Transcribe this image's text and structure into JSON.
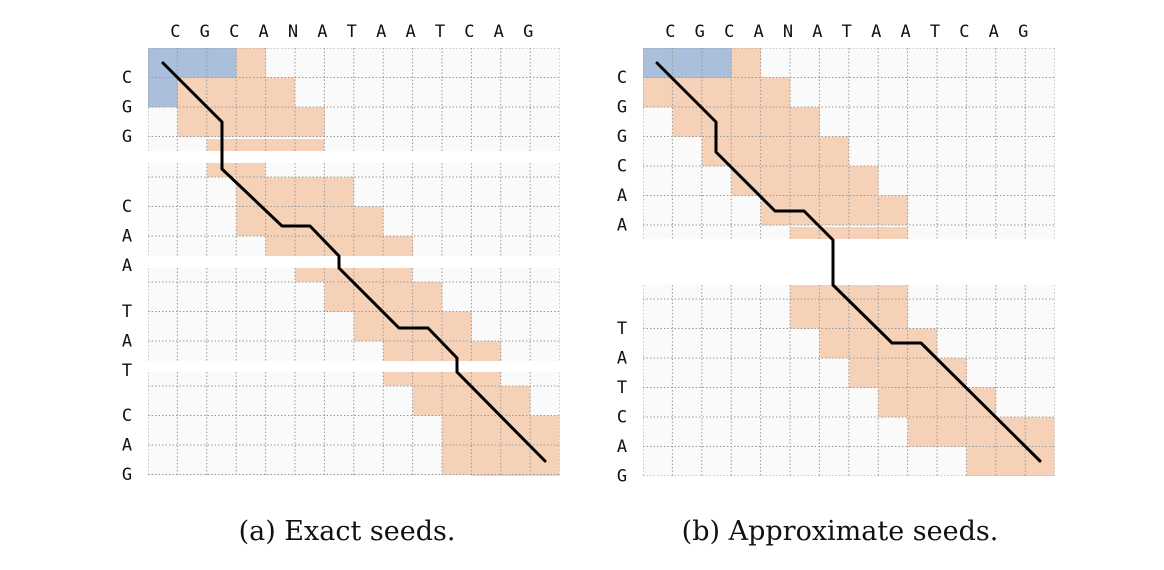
{
  "panels": [
    {
      "id": "a",
      "caption": "(a) Exact seeds.",
      "top_sequence": [
        "C",
        "G",
        "C",
        "A",
        "N",
        "A",
        "T",
        "A",
        "A",
        "T",
        "C",
        "A",
        "G"
      ],
      "blocks": [
        {
          "rows": [
            "C",
            "G",
            "G"
          ],
          "blue": [
            [
              0,
              0
            ],
            [
              0,
              1
            ],
            [
              0,
              2
            ],
            [
              1,
              0
            ]
          ],
          "orange": [
            [
              0,
              3
            ],
            [
              1,
              1
            ],
            [
              1,
              2
            ],
            [
              1,
              3
            ],
            [
              1,
              4
            ],
            [
              2,
              1
            ],
            [
              2,
              2
            ],
            [
              2,
              3
            ],
            [
              2,
              4
            ],
            [
              2,
              5
            ]
          ],
          "orange_bottom_band": [
            2,
            5
          ]
        },
        {
          "rows": [
            "C",
            "A",
            "A"
          ],
          "blue": [],
          "orange": [
            [
              0,
              3
            ],
            [
              0,
              4
            ],
            [
              0,
              5
            ],
            [
              0,
              6
            ],
            [
              1,
              3
            ],
            [
              1,
              4
            ],
            [
              1,
              5
            ],
            [
              1,
              6
            ],
            [
              1,
              7
            ],
            [
              2,
              4
            ],
            [
              2,
              5
            ],
            [
              2,
              6
            ],
            [
              2,
              7
            ],
            [
              2,
              8
            ]
          ],
          "orange_top_band": [
            2,
            3
          ],
          "orange_bottom_band": [
            5,
            8
          ]
        },
        {
          "rows": [
            "T",
            "A",
            "T"
          ],
          "blue": [],
          "orange": [
            [
              0,
              6
            ],
            [
              0,
              7
            ],
            [
              0,
              8
            ],
            [
              0,
              9
            ],
            [
              1,
              7
            ],
            [
              1,
              8
            ],
            [
              1,
              9
            ],
            [
              1,
              10
            ],
            [
              2,
              8
            ],
            [
              2,
              9
            ],
            [
              2,
              10
            ],
            [
              2,
              11
            ]
          ],
          "orange_top_band": [
            5,
            8
          ],
          "orange_bottom_band": [
            8,
            11
          ]
        },
        {
          "rows": [
            "C",
            "A",
            "G"
          ],
          "blue": [],
          "orange": [
            [
              0,
              9
            ],
            [
              0,
              10
            ],
            [
              0,
              11
            ],
            [
              0,
              12
            ],
            [
              1,
              10
            ],
            [
              1,
              11
            ],
            [
              1,
              12
            ],
            [
              1,
              13
            ],
            [
              2,
              10
            ],
            [
              2,
              11
            ],
            [
              2,
              12
            ],
            [
              2,
              13
            ],
            [
              3,
              11
            ],
            [
              3,
              12
            ],
            [
              3,
              13
            ]
          ],
          "orange_top_band": [
            8,
            11
          ]
        }
      ]
    },
    {
      "id": "b",
      "caption": "(b) Approximate seeds.",
      "top_sequence": [
        "C",
        "G",
        "C",
        "A",
        "N",
        "A",
        "T",
        "A",
        "A",
        "T",
        "C",
        "A",
        "G"
      ],
      "blocks": [
        {
          "rows": [
            "C",
            "G",
            "G",
            "C",
            "A",
            "A"
          ],
          "blue": [
            [
              0,
              0
            ],
            [
              0,
              1
            ],
            [
              0,
              2
            ]
          ],
          "orange": [
            [
              0,
              3
            ],
            [
              1,
              0
            ],
            [
              1,
              1
            ],
            [
              1,
              2
            ],
            [
              1,
              3
            ],
            [
              1,
              4
            ],
            [
              2,
              1
            ],
            [
              2,
              2
            ],
            [
              2,
              3
            ],
            [
              2,
              4
            ],
            [
              2,
              5
            ],
            [
              3,
              2
            ],
            [
              3,
              3
            ],
            [
              3,
              4
            ],
            [
              3,
              5
            ],
            [
              3,
              6
            ],
            [
              4,
              3
            ],
            [
              4,
              4
            ],
            [
              4,
              5
            ],
            [
              4,
              6
            ],
            [
              4,
              7
            ],
            [
              5,
              4
            ],
            [
              5,
              5
            ],
            [
              5,
              6
            ],
            [
              5,
              7
            ],
            [
              5,
              8
            ]
          ],
          "orange_bottom_band": [
            5,
            8
          ]
        },
        {
          "rows": [
            "T",
            "A",
            "T",
            "C",
            "A",
            "G"
          ],
          "blue": [],
          "orange": [
            [
              0,
              5
            ],
            [
              0,
              6
            ],
            [
              0,
              7
            ],
            [
              0,
              8
            ],
            [
              1,
              6
            ],
            [
              1,
              7
            ],
            [
              1,
              8
            ],
            [
              1,
              9
            ],
            [
              2,
              7
            ],
            [
              2,
              8
            ],
            [
              2,
              9
            ],
            [
              2,
              10
            ],
            [
              3,
              8
            ],
            [
              3,
              9
            ],
            [
              3,
              10
            ],
            [
              3,
              11
            ],
            [
              4,
              9
            ],
            [
              4,
              10
            ],
            [
              4,
              11
            ],
            [
              4,
              12
            ],
            [
              4,
              13
            ],
            [
              5,
              11
            ],
            [
              5,
              12
            ],
            [
              5,
              13
            ]
          ],
          "orange_top_band": [
            5,
            8
          ]
        }
      ]
    }
  ],
  "colors": {
    "blue": "#aabfdb",
    "orange": "#f5d1b8",
    "grid": "#9a9a9a",
    "path": "#000000",
    "cell_bg": "#fafafa"
  }
}
